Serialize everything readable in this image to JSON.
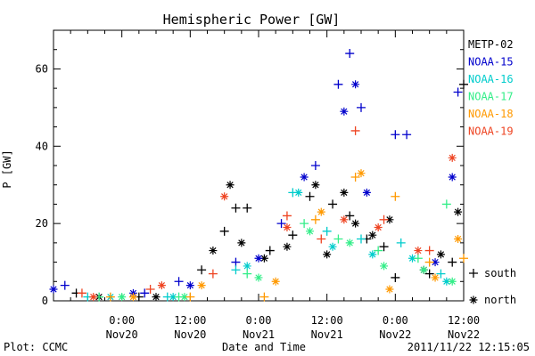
{
  "chart_data": {
    "type": "scatter",
    "title": "Hemispheric Power [GW]",
    "xlabel": "Date and Time",
    "ylabel": "P [GW]",
    "xlim": [
      "2011-11-19 12:00",
      "2011-11-22 12:00"
    ],
    "ylim": [
      0,
      70
    ],
    "y_ticks": [
      0,
      20,
      40,
      60
    ],
    "x_ticks": [
      {
        "time": "2011-11-20 00:00",
        "label1": "0:00",
        "label2": "Nov20"
      },
      {
        "time": "2011-11-20 12:00",
        "label1": "12:00",
        "label2": "Nov20"
      },
      {
        "time": "2011-11-21 00:00",
        "label1": "0:00",
        "label2": "Nov21"
      },
      {
        "time": "2011-11-21 12:00",
        "label1": "12:00",
        "label2": "Nov21"
      },
      {
        "time": "2011-11-22 00:00",
        "label1": "0:00",
        "label2": "Nov22"
      },
      {
        "time": "2011-11-22 12:00",
        "label1": "12:00",
        "label2": "Nov22"
      }
    ],
    "grid": false,
    "legend_position": "right",
    "marker_legend": [
      {
        "marker": "plus",
        "label": "south"
      },
      {
        "marker": "asterisk",
        "label": "north"
      }
    ],
    "series": [
      {
        "name": "METP-02",
        "color": "#000000",
        "south": [
          [
            "2011-11-19 16:00",
            2
          ],
          [
            "2011-11-20 03:00",
            1
          ],
          [
            "2011-11-20 14:00",
            8
          ],
          [
            "2011-11-20 18:00",
            18
          ],
          [
            "2011-11-20 20:00",
            24
          ],
          [
            "2011-11-20 22:00",
            24
          ],
          [
            "2011-11-21 02:00",
            13
          ],
          [
            "2011-11-21 06:00",
            17
          ],
          [
            "2011-11-21 09:00",
            27
          ],
          [
            "2011-11-21 13:00",
            25
          ],
          [
            "2011-11-21 16:00",
            22
          ],
          [
            "2011-11-21 19:00",
            16
          ],
          [
            "2011-11-21 22:00",
            14
          ],
          [
            "2011-11-22 00:00",
            6
          ],
          [
            "2011-11-22 06:00",
            7
          ],
          [
            "2011-11-22 10:00",
            10
          ],
          [
            "2011-11-22 12:00",
            56
          ]
        ],
        "north": [
          [
            "2011-11-19 20:00",
            1
          ],
          [
            "2011-11-20 06:00",
            1
          ],
          [
            "2011-11-20 16:00",
            13
          ],
          [
            "2011-11-20 19:00",
            30
          ],
          [
            "2011-11-20 21:00",
            15
          ],
          [
            "2011-11-21 01:00",
            11
          ],
          [
            "2011-11-21 05:00",
            14
          ],
          [
            "2011-11-21 10:00",
            30
          ],
          [
            "2011-11-21 12:00",
            12
          ],
          [
            "2011-11-21 15:00",
            28
          ],
          [
            "2011-11-21 17:00",
            20
          ],
          [
            "2011-11-21 20:00",
            17
          ],
          [
            "2011-11-21 23:00",
            21
          ],
          [
            "2011-11-22 05:00",
            8
          ],
          [
            "2011-11-22 08:00",
            12
          ],
          [
            "2011-11-22 11:00",
            23
          ]
        ]
      },
      {
        "name": "NOAA-15",
        "color": "#0000cc",
        "south": [
          [
            "2011-11-19 14:00",
            4
          ],
          [
            "2011-11-20 04:00",
            2
          ],
          [
            "2011-11-20 10:00",
            5
          ],
          [
            "2011-11-20 20:00",
            10
          ],
          [
            "2011-11-21 04:00",
            20
          ],
          [
            "2011-11-21 10:00",
            35
          ],
          [
            "2011-11-21 14:00",
            56
          ],
          [
            "2011-11-21 16:00",
            64
          ],
          [
            "2011-11-21 18:00",
            50
          ],
          [
            "2011-11-22 00:00",
            43
          ],
          [
            "2011-11-22 02:00",
            43
          ],
          [
            "2011-11-22 11:00",
            54
          ]
        ],
        "north": [
          [
            "2011-11-19 12:00",
            3
          ],
          [
            "2011-11-20 02:00",
            2
          ],
          [
            "2011-11-20 12:00",
            4
          ],
          [
            "2011-11-21 00:00",
            11
          ],
          [
            "2011-11-21 08:00",
            32
          ],
          [
            "2011-11-21 15:00",
            49
          ],
          [
            "2011-11-21 17:00",
            56
          ],
          [
            "2011-11-21 19:00",
            28
          ],
          [
            "2011-11-22 07:00",
            10
          ],
          [
            "2011-11-22 10:00",
            32
          ]
        ]
      },
      {
        "name": "NOAA-16",
        "color": "#00cccc",
        "south": [
          [
            "2011-11-19 18:00",
            1
          ],
          [
            "2011-11-20 08:00",
            1
          ],
          [
            "2011-11-20 20:00",
            8
          ],
          [
            "2011-11-21 06:00",
            28
          ],
          [
            "2011-11-21 12:00",
            18
          ],
          [
            "2011-11-21 18:00",
            16
          ],
          [
            "2011-11-22 01:00",
            15
          ],
          [
            "2011-11-22 08:00",
            7
          ]
        ],
        "north": [
          [
            "2011-11-19 22:00",
            1
          ],
          [
            "2011-11-20 09:00",
            1
          ],
          [
            "2011-11-20 22:00",
            9
          ],
          [
            "2011-11-21 07:00",
            28
          ],
          [
            "2011-11-21 13:00",
            14
          ],
          [
            "2011-11-21 20:00",
            12
          ],
          [
            "2011-11-22 03:00",
            11
          ],
          [
            "2011-11-22 09:00",
            5
          ]
        ]
      },
      {
        "name": "NOAA-17",
        "color": "#33ee88",
        "south": [
          [
            "2011-11-19 20:00",
            1
          ],
          [
            "2011-11-20 10:00",
            1
          ],
          [
            "2011-11-20 22:00",
            7
          ],
          [
            "2011-11-21 08:00",
            20
          ],
          [
            "2011-11-21 14:00",
            16
          ],
          [
            "2011-11-21 21:00",
            13
          ],
          [
            "2011-11-22 04:00",
            11
          ],
          [
            "2011-11-22 09:00",
            25
          ]
        ],
        "north": [
          [
            "2011-11-20 00:00",
            1
          ],
          [
            "2011-11-20 11:00",
            1
          ],
          [
            "2011-11-21 00:00",
            6
          ],
          [
            "2011-11-21 09:00",
            18
          ],
          [
            "2011-11-21 16:00",
            15
          ],
          [
            "2011-11-21 22:00",
            9
          ],
          [
            "2011-11-22 05:00",
            8
          ],
          [
            "2011-11-22 10:00",
            5
          ]
        ]
      },
      {
        "name": "NOAA-18",
        "color": "#ff9900",
        "south": [
          [
            "2011-11-19 22:00",
            1
          ],
          [
            "2011-11-20 12:00",
            1
          ],
          [
            "2011-11-21 01:00",
            1
          ],
          [
            "2011-11-21 10:00",
            21
          ],
          [
            "2011-11-21 17:00",
            32
          ],
          [
            "2011-11-22 00:00",
            27
          ],
          [
            "2011-11-22 06:00",
            10
          ],
          [
            "2011-11-22 12:00",
            11
          ]
        ],
        "north": [
          [
            "2011-11-20 02:00",
            1
          ],
          [
            "2011-11-20 14:00",
            4
          ],
          [
            "2011-11-21 03:00",
            5
          ],
          [
            "2011-11-21 11:00",
            23
          ],
          [
            "2011-11-21 18:00",
            33
          ],
          [
            "2011-11-21 23:00",
            3
          ],
          [
            "2011-11-22 07:00",
            6
          ],
          [
            "2011-11-22 11:00",
            16
          ]
        ]
      },
      {
        "name": "NOAA-19",
        "color": "#ee4422",
        "south": [
          [
            "2011-11-19 17:00",
            2
          ],
          [
            "2011-11-20 05:00",
            3
          ],
          [
            "2011-11-20 16:00",
            7
          ],
          [
            "2011-11-21 05:00",
            22
          ],
          [
            "2011-11-21 11:00",
            16
          ],
          [
            "2011-11-21 17:00",
            44
          ],
          [
            "2011-11-21 22:00",
            21
          ],
          [
            "2011-11-22 06:00",
            13
          ]
        ],
        "north": [
          [
            "2011-11-19 19:00",
            1
          ],
          [
            "2011-11-20 07:00",
            4
          ],
          [
            "2011-11-20 18:00",
            27
          ],
          [
            "2011-11-21 05:00",
            19
          ],
          [
            "2011-11-21 15:00",
            21
          ],
          [
            "2011-11-21 21:00",
            19
          ],
          [
            "2011-11-22 04:00",
            13
          ],
          [
            "2011-11-22 10:00",
            37
          ]
        ]
      }
    ]
  },
  "footer": {
    "plot_credit": "Plot: CCMC",
    "timestamp": "2011/11/22 12:15:05"
  }
}
